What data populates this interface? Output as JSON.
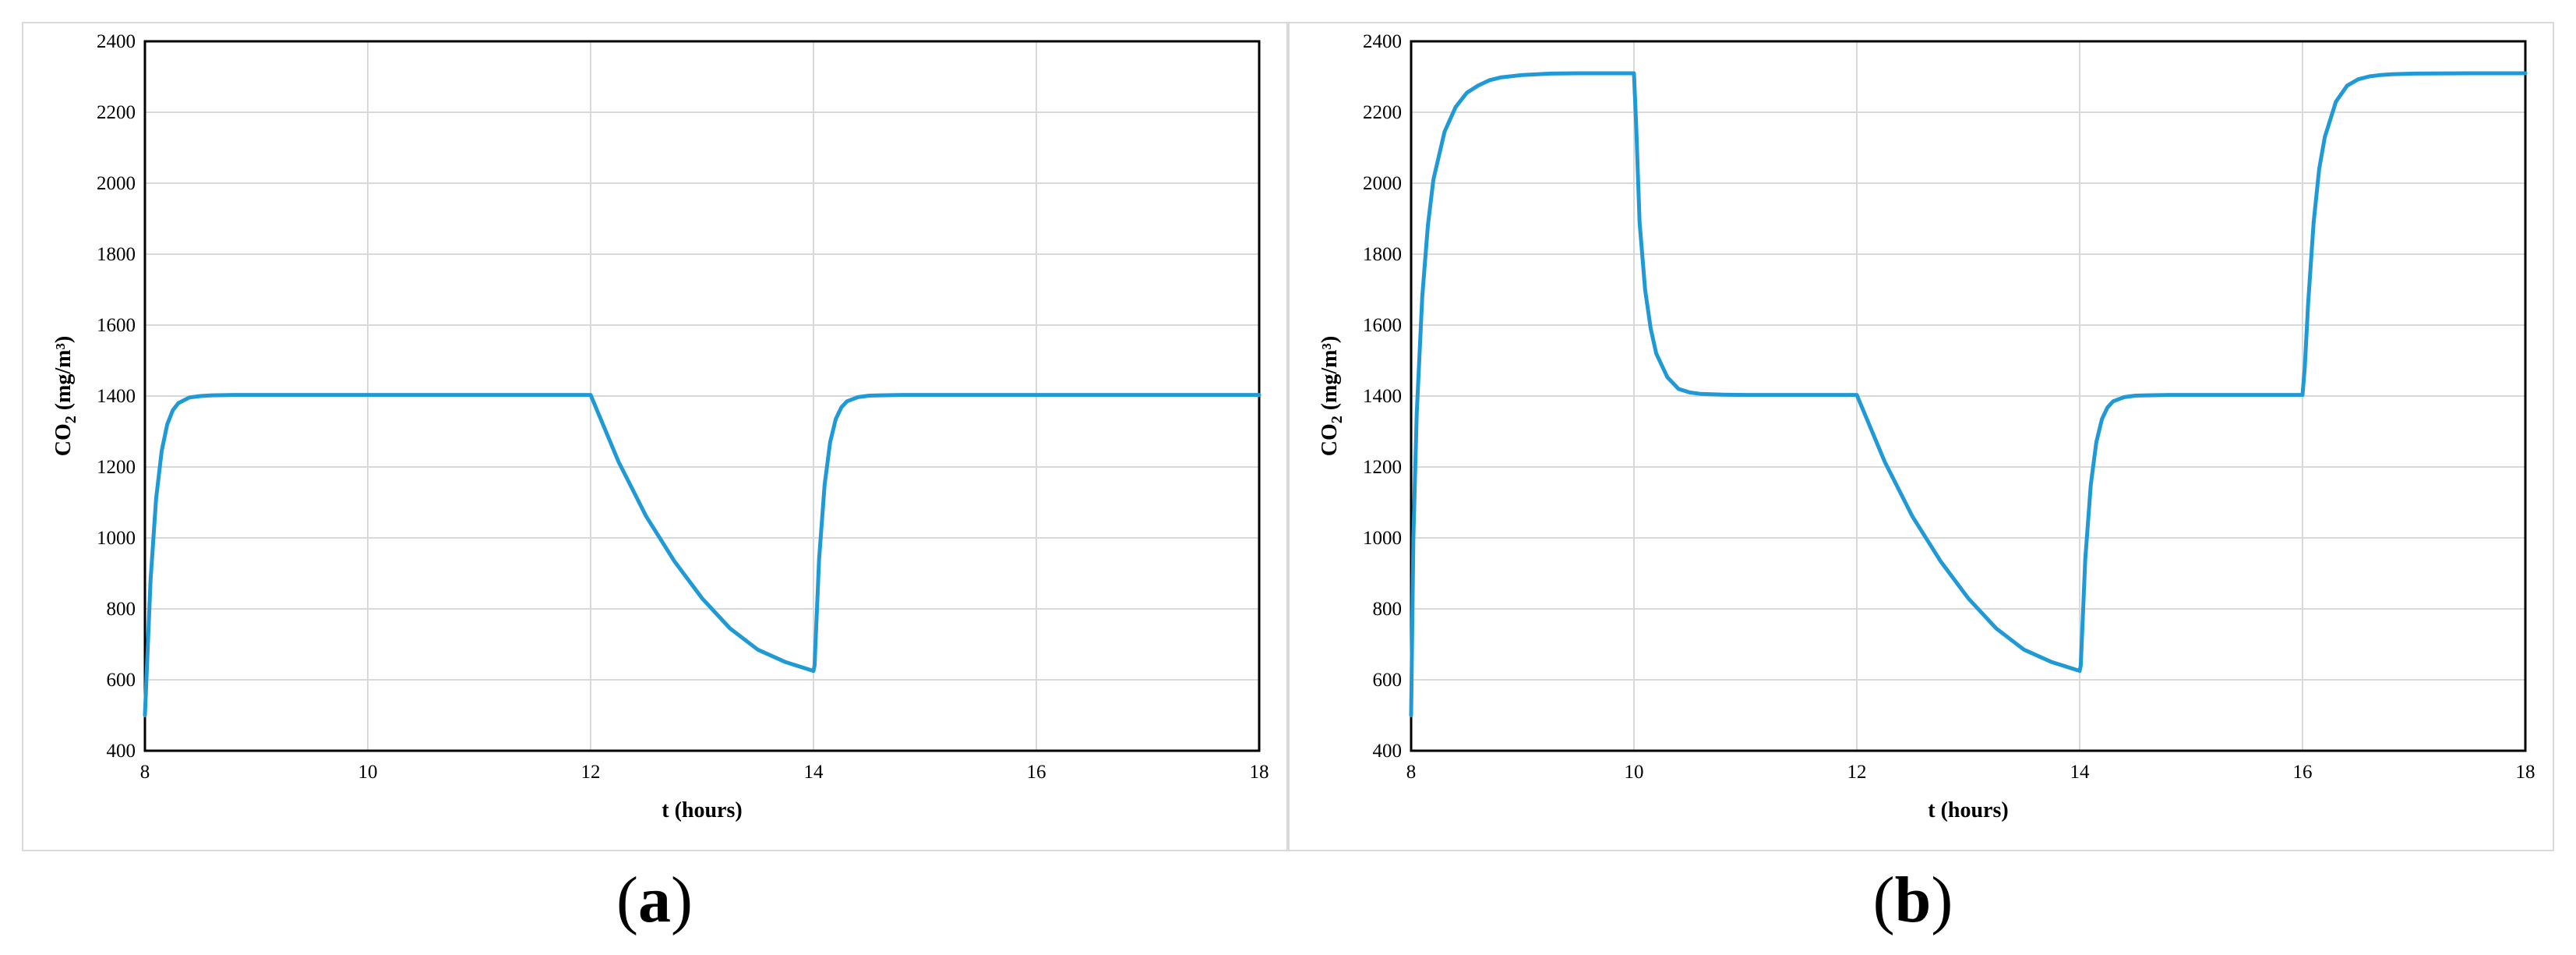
{
  "captions": {
    "a_open": "(",
    "a_letter": "a",
    "a_close": ")",
    "b_open": "(",
    "b_letter": "b",
    "b_close": ")"
  },
  "colors": {
    "line": "#1f9ad6",
    "grid": "#d9d9d9",
    "frame": "#000000",
    "panel_border": "#d9d9d9"
  },
  "chart_data": [
    {
      "panel": "a",
      "type": "line",
      "title": "",
      "xlabel": "t (hours)",
      "ylabel_main": "CO",
      "ylabel_sub": "2",
      "ylabel_unit": " (mg/m³)",
      "xlim": [
        8,
        18
      ],
      "ylim": [
        400,
        2400
      ],
      "xticks": [
        8,
        10,
        12,
        14,
        16,
        18
      ],
      "yticks": [
        400,
        600,
        800,
        1000,
        1200,
        1400,
        1600,
        1800,
        2000,
        2200,
        2400
      ],
      "grid": true,
      "legend": "none",
      "series": [
        {
          "x": [
            8,
            8.05,
            8.1,
            8.15,
            8.2,
            8.25,
            8.3,
            8.4,
            8.5,
            8.6,
            8.8,
            9,
            10,
            11,
            12,
            12.25,
            12.5,
            12.75,
            13,
            13.25,
            13.5,
            13.75,
            14,
            14.01,
            14.05,
            14.1,
            14.15,
            14.2,
            14.25,
            14.3,
            14.4,
            14.5,
            14.6,
            14.8,
            15,
            16,
            17,
            18
          ],
          "y": [
            500,
            880,
            1110,
            1245,
            1320,
            1360,
            1380,
            1396,
            1400,
            1402,
            1403,
            1403,
            1403,
            1403,
            1403,
            1215,
            1060,
            935,
            830,
            745,
            685,
            650,
            625,
            640,
            940,
            1150,
            1270,
            1335,
            1368,
            1385,
            1397,
            1401,
            1402,
            1403,
            1403,
            1403,
            1403,
            1403
          ]
        }
      ]
    },
    {
      "panel": "b",
      "type": "line",
      "title": "",
      "xlabel": "t (hours)",
      "ylabel_main": "CO",
      "ylabel_sub": "2",
      "ylabel_unit": " (mg/m³)",
      "xlim": [
        8,
        18
      ],
      "ylim": [
        400,
        2400
      ],
      "xticks": [
        8,
        10,
        12,
        14,
        16,
        18
      ],
      "yticks": [
        400,
        600,
        800,
        1000,
        1200,
        1400,
        1600,
        1800,
        2000,
        2200,
        2400
      ],
      "grid": true,
      "legend": "none",
      "series": [
        {
          "x": [
            8,
            8.02,
            8.05,
            8.1,
            8.15,
            8.2,
            8.3,
            8.4,
            8.5,
            8.6,
            8.7,
            8.8,
            9,
            9.25,
            9.5,
            10,
            10.02,
            10.05,
            10.1,
            10.15,
            10.2,
            10.3,
            10.4,
            10.5,
            10.6,
            10.8,
            11,
            12,
            12.25,
            12.5,
            12.75,
            13,
            13.25,
            13.5,
            13.75,
            14,
            14.01,
            14.05,
            14.1,
            14.15,
            14.2,
            14.25,
            14.3,
            14.4,
            14.5,
            14.6,
            14.8,
            15,
            16,
            16.02,
            16.05,
            16.1,
            16.15,
            16.2,
            16.3,
            16.4,
            16.5,
            16.6,
            16.7,
            16.8,
            17,
            17.5,
            18
          ],
          "y": [
            500,
            1000,
            1350,
            1680,
            1880,
            2010,
            2145,
            2215,
            2255,
            2275,
            2290,
            2298,
            2305,
            2309,
            2310,
            2310,
            2160,
            1890,
            1700,
            1590,
            1520,
            1453,
            1420,
            1410,
            1406,
            1404,
            1403,
            1403,
            1215,
            1060,
            935,
            830,
            745,
            685,
            650,
            625,
            640,
            940,
            1150,
            1270,
            1335,
            1368,
            1385,
            1397,
            1401,
            1402,
            1403,
            1403,
            1403,
            1480,
            1660,
            1890,
            2040,
            2130,
            2230,
            2275,
            2293,
            2301,
            2305,
            2307,
            2309,
            2310,
            2310
          ]
        }
      ]
    }
  ]
}
